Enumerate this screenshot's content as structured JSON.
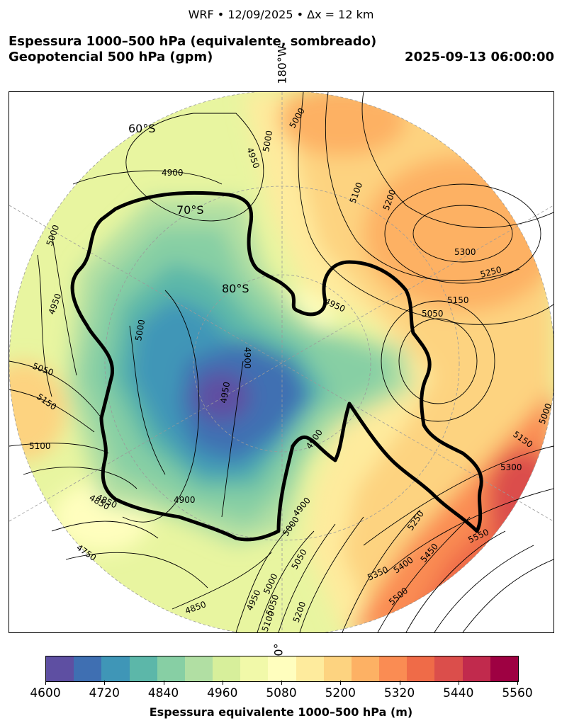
{
  "header": {
    "suptitle": "WRF • 12/09/2025 • Δx = 12 km",
    "title_line1": "Espessura 1000–500 hPa (equivalente, sombreado)",
    "title_line2": "Geopotencial 500 hPa (gpm)",
    "valid_time": "2025-09-13 06:00:00"
  },
  "map": {
    "projection": "south-polar-stereographic",
    "lon_labels": {
      "top": "180°W",
      "bottom": "0°"
    },
    "lat_labels": [
      "60°S",
      "70°S",
      "80°S"
    ],
    "contour_labels": [
      "5000",
      "4950",
      "5000",
      "4900",
      "5100",
      "5200",
      "5300",
      "5250",
      "5150",
      "5050",
      "4950",
      "5000",
      "4950",
      "5000",
      "4900",
      "5050",
      "5150",
      "5100",
      "4950",
      "4900",
      "4850",
      "4900",
      "4750",
      "4850",
      "4950",
      "5000",
      "5050",
      "5100",
      "5200",
      "5000",
      "5150",
      "5300",
      "5250",
      "5450",
      "5550",
      "5400",
      "5350",
      "5500",
      "4900",
      "5000",
      "4850",
      "5050"
    ]
  },
  "colorbar": {
    "label": "Espessura equivalente 1000–500 hPa (m)",
    "tick_labels": [
      "4600",
      "4720",
      "4840",
      "4960",
      "5080",
      "5200",
      "5320",
      "5440",
      "5560"
    ],
    "colors": [
      "#5e4fa2",
      "#3f6fb2",
      "#3f96b7",
      "#5cb7a9",
      "#87cfa4",
      "#b1dfa3",
      "#d7ef9b",
      "#f1f9a9",
      "#fffebe",
      "#feeb9d",
      "#fdd380",
      "#fdb164",
      "#fa8c53",
      "#ef6b48",
      "#db4e4b",
      "#c12a4d",
      "#9e0142"
    ]
  }
}
